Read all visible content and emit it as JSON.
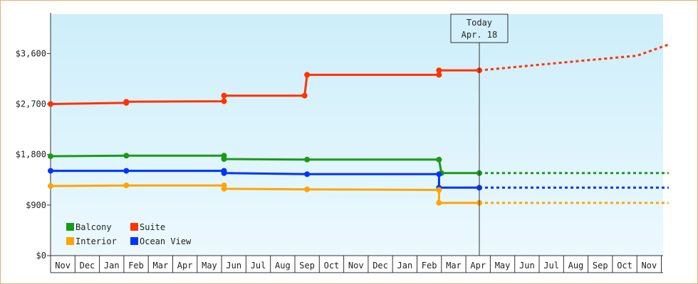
{
  "chart_data": {
    "type": "line",
    "title": "",
    "xlabel": "",
    "ylabel": "",
    "ylim": [
      0,
      4300
    ],
    "y_ticks": [
      {
        "value": 0,
        "label": "$0"
      },
      {
        "value": 900,
        "label": "$900"
      },
      {
        "value": 1800,
        "label": "$1,800"
      },
      {
        "value": 2700,
        "label": "$2,700"
      },
      {
        "value": 3600,
        "label": "$3,600"
      }
    ],
    "x_labels": [
      "Nov",
      "Dec",
      "Jan",
      "Feb",
      "Mar",
      "Apr",
      "May",
      "Jun",
      "Jul",
      "Aug",
      "Sep",
      "Oct",
      "Nov",
      "Dec",
      "Jan",
      "Feb",
      "Mar",
      "Apr",
      "May",
      "Jun",
      "Jul",
      "Aug",
      "Sep",
      "Oct",
      "Nov"
    ],
    "x_start_month_index": 0,
    "today": {
      "label_line1": "Today",
      "label_line2": "Apr. 18",
      "x": 17.55
    },
    "grid": false,
    "background": {
      "top": "#cdeefa",
      "bottom": "#ecf9fe"
    },
    "legend": {
      "placement": "bottom-left",
      "columns": 2,
      "entries": [
        {
          "name": "Balcony",
          "color": "#1a9a1a"
        },
        {
          "name": "Suite",
          "color": "#ff3300"
        },
        {
          "name": "Interior",
          "color": "#ffa500"
        },
        {
          "name": "Ocean View",
          "color": "#0033ff"
        }
      ]
    },
    "series": [
      {
        "name": "Suite",
        "color": "#ff3300",
        "points": [
          [
            0,
            2700
          ],
          [
            3.1,
            2720
          ],
          [
            3.1,
            2740
          ],
          [
            7.1,
            2750
          ],
          [
            7.1,
            2850
          ],
          [
            10.4,
            2850
          ],
          [
            10.5,
            3220
          ],
          [
            15.9,
            3220
          ],
          [
            15.9,
            3300
          ],
          [
            17.55,
            3300
          ]
        ],
        "markers": [
          [
            0,
            2700
          ],
          [
            3.1,
            2720
          ],
          [
            3.1,
            2740
          ],
          [
            7.1,
            2750
          ],
          [
            7.1,
            2850
          ],
          [
            10.4,
            2850
          ],
          [
            10.5,
            3220
          ],
          [
            15.9,
            3220
          ],
          [
            15.9,
            3300
          ],
          [
            17.55,
            3300
          ]
        ],
        "forecast": [
          [
            17.55,
            3300
          ],
          [
            20,
            3400
          ],
          [
            22,
            3480
          ],
          [
            24,
            3560
          ],
          [
            25.3,
            3760
          ]
        ]
      },
      {
        "name": "Balcony",
        "color": "#1a9a1a",
        "points": [
          [
            0,
            1770
          ],
          [
            3.1,
            1780
          ],
          [
            7.1,
            1780
          ],
          [
            7.1,
            1720
          ],
          [
            10.5,
            1710
          ],
          [
            15.9,
            1710
          ],
          [
            16.0,
            1470
          ],
          [
            17.55,
            1470
          ]
        ],
        "markers": [
          [
            0,
            1770
          ],
          [
            3.1,
            1780
          ],
          [
            7.1,
            1780
          ],
          [
            7.1,
            1720
          ],
          [
            10.5,
            1710
          ],
          [
            15.9,
            1710
          ],
          [
            16.0,
            1470
          ],
          [
            17.55,
            1470
          ]
        ],
        "forecast": [
          [
            17.55,
            1470
          ],
          [
            25.3,
            1470
          ]
        ]
      },
      {
        "name": "Ocean View",
        "color": "#0033ff",
        "points": [
          [
            0,
            1510
          ],
          [
            3.1,
            1510
          ],
          [
            7.1,
            1510
          ],
          [
            7.1,
            1470
          ],
          [
            10.5,
            1450
          ],
          [
            15.9,
            1450
          ],
          [
            15.9,
            1210
          ],
          [
            17.55,
            1210
          ]
        ],
        "markers": [
          [
            0,
            1510
          ],
          [
            3.1,
            1510
          ],
          [
            7.1,
            1510
          ],
          [
            7.1,
            1470
          ],
          [
            10.5,
            1450
          ],
          [
            15.9,
            1450
          ],
          [
            15.9,
            1210
          ],
          [
            17.55,
            1210
          ]
        ],
        "forecast": [
          [
            17.55,
            1210
          ],
          [
            25.3,
            1210
          ]
        ]
      },
      {
        "name": "Interior",
        "color": "#ffa500",
        "points": [
          [
            0,
            1240
          ],
          [
            3.1,
            1250
          ],
          [
            7.1,
            1250
          ],
          [
            7.1,
            1190
          ],
          [
            10.5,
            1180
          ],
          [
            15.9,
            1170
          ],
          [
            15.9,
            940
          ],
          [
            17.55,
            940
          ]
        ],
        "markers": [
          [
            0,
            1240
          ],
          [
            3.1,
            1250
          ],
          [
            7.1,
            1250
          ],
          [
            7.1,
            1190
          ],
          [
            10.5,
            1180
          ],
          [
            15.9,
            1170
          ],
          [
            15.9,
            940
          ],
          [
            17.55,
            940
          ]
        ],
        "forecast": [
          [
            17.55,
            940
          ],
          [
            25.3,
            940
          ]
        ]
      }
    ]
  }
}
